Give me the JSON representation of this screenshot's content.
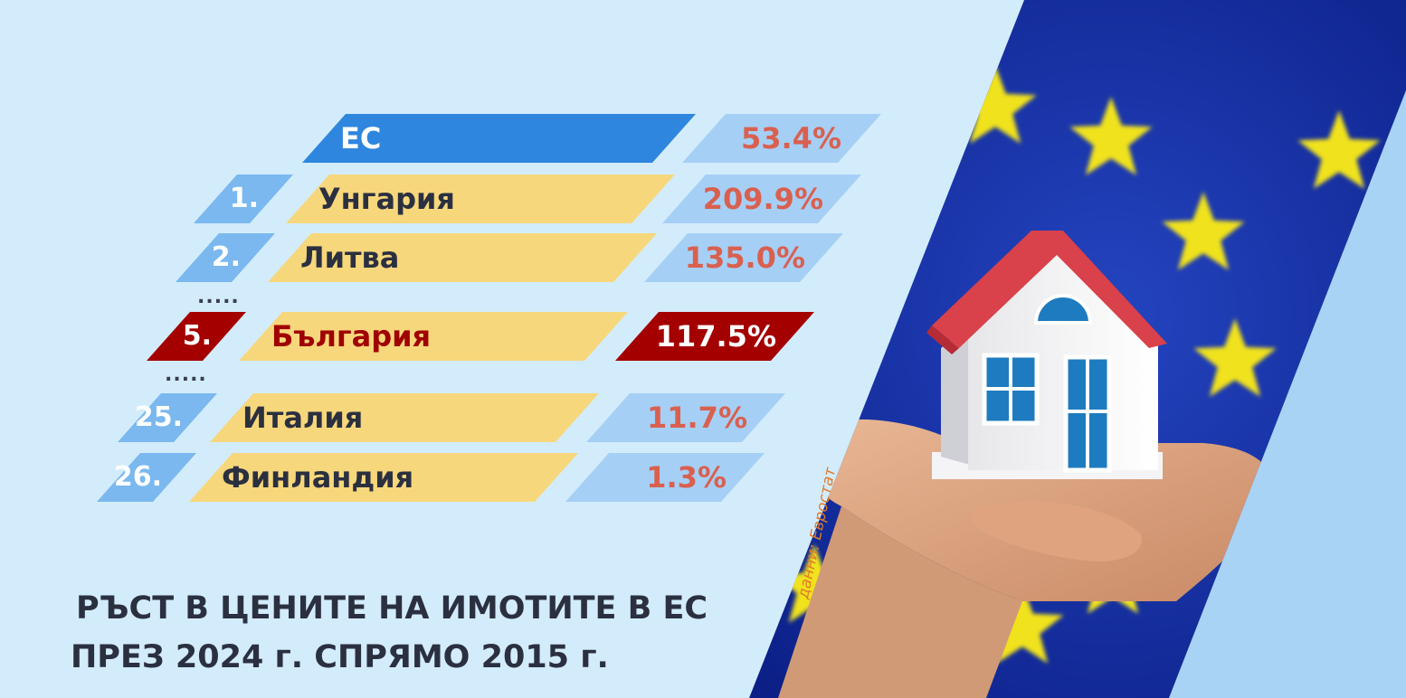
{
  "chart_data": {
    "type": "bar",
    "title": "РЪСТ В ЦЕНИТЕ НА ИМОТИТЕ В ЕС",
    "subtitle": "ПРЕЗ 2024 г. СПРЯМО 2015 г.",
    "source": "данни: Евростат",
    "ellipsis": ".....",
    "unit": "%",
    "total": {
      "label": "ЕС",
      "value": 53.4,
      "value_text": "53.4%"
    },
    "rows": [
      {
        "rank": "1.",
        "country": "Унгария",
        "value": 209.9,
        "value_text": "209.9%",
        "highlight": false
      },
      {
        "rank": "2.",
        "country": "Литва",
        "value": 135.0,
        "value_text": "135.0%",
        "highlight": false
      },
      {
        "rank": "5.",
        "country": "България",
        "value": 117.5,
        "value_text": "117.5%",
        "highlight": true
      },
      {
        "rank": "25.",
        "country": "Италия",
        "value": 11.7,
        "value_text": "11.7%",
        "highlight": false
      },
      {
        "rank": "26.",
        "country": "Финландия",
        "value": 1.3,
        "value_text": "1.3%",
        "highlight": false
      }
    ],
    "gaps_after_rows": [
      1,
      2
    ]
  },
  "colors": {
    "background": "#d3ecfb",
    "rank_box": "#7ab8ef",
    "country_bar": "#f7d77c",
    "value_box": "#a6cff6",
    "eu_bar": "#2e86de",
    "highlight": "#a40000",
    "value_text": "#d9604f",
    "eu_flag_blue": "#1233a8",
    "star_yellow": "#f0e21a",
    "source_text": "#e07b2a"
  },
  "photo": {
    "depicts": "hand holding model house in front of EU flag",
    "icon": "house-in-hand-icon"
  }
}
